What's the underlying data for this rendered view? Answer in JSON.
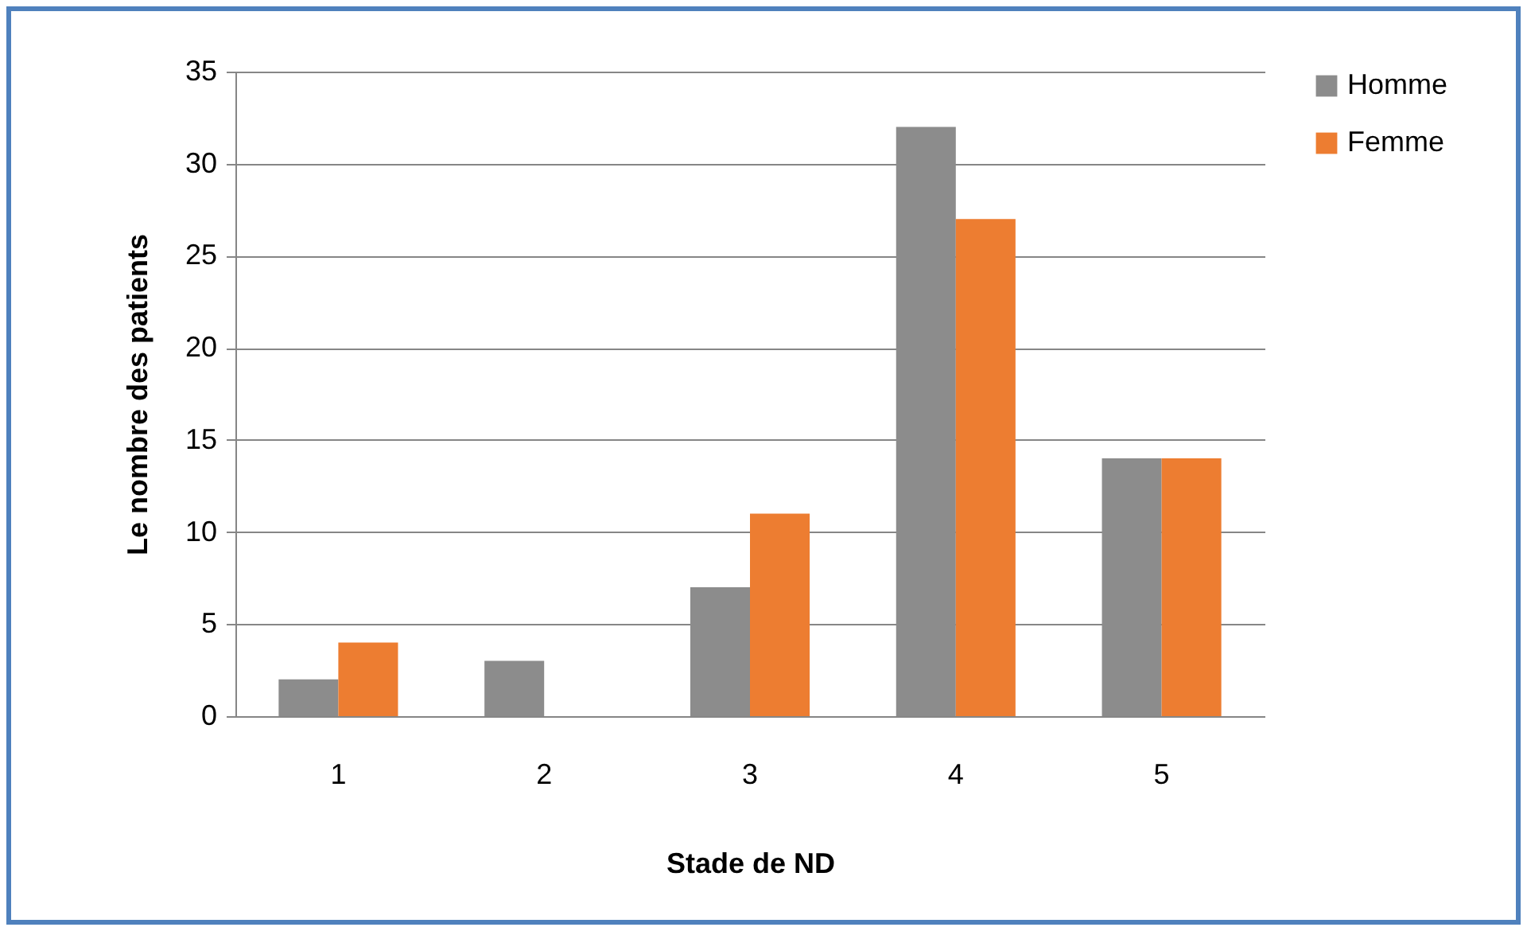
{
  "chart_data": {
    "type": "bar",
    "xlabel": "Stade de ND",
    "ylabel": "Le nombre des patients",
    "categories": [
      "1",
      "2",
      "3",
      "4",
      "5"
    ],
    "series": [
      {
        "name": "Homme",
        "color": "#8c8c8c",
        "values": [
          2,
          3,
          7,
          32,
          14
        ]
      },
      {
        "name": "Femme",
        "color": "#ed7d31",
        "values": [
          4,
          0,
          11,
          27,
          14
        ]
      }
    ],
    "ylim": [
      0,
      35
    ],
    "yticks": [
      0,
      5,
      10,
      15,
      20,
      25,
      30,
      35
    ],
    "grid": "y",
    "legend": "right"
  }
}
